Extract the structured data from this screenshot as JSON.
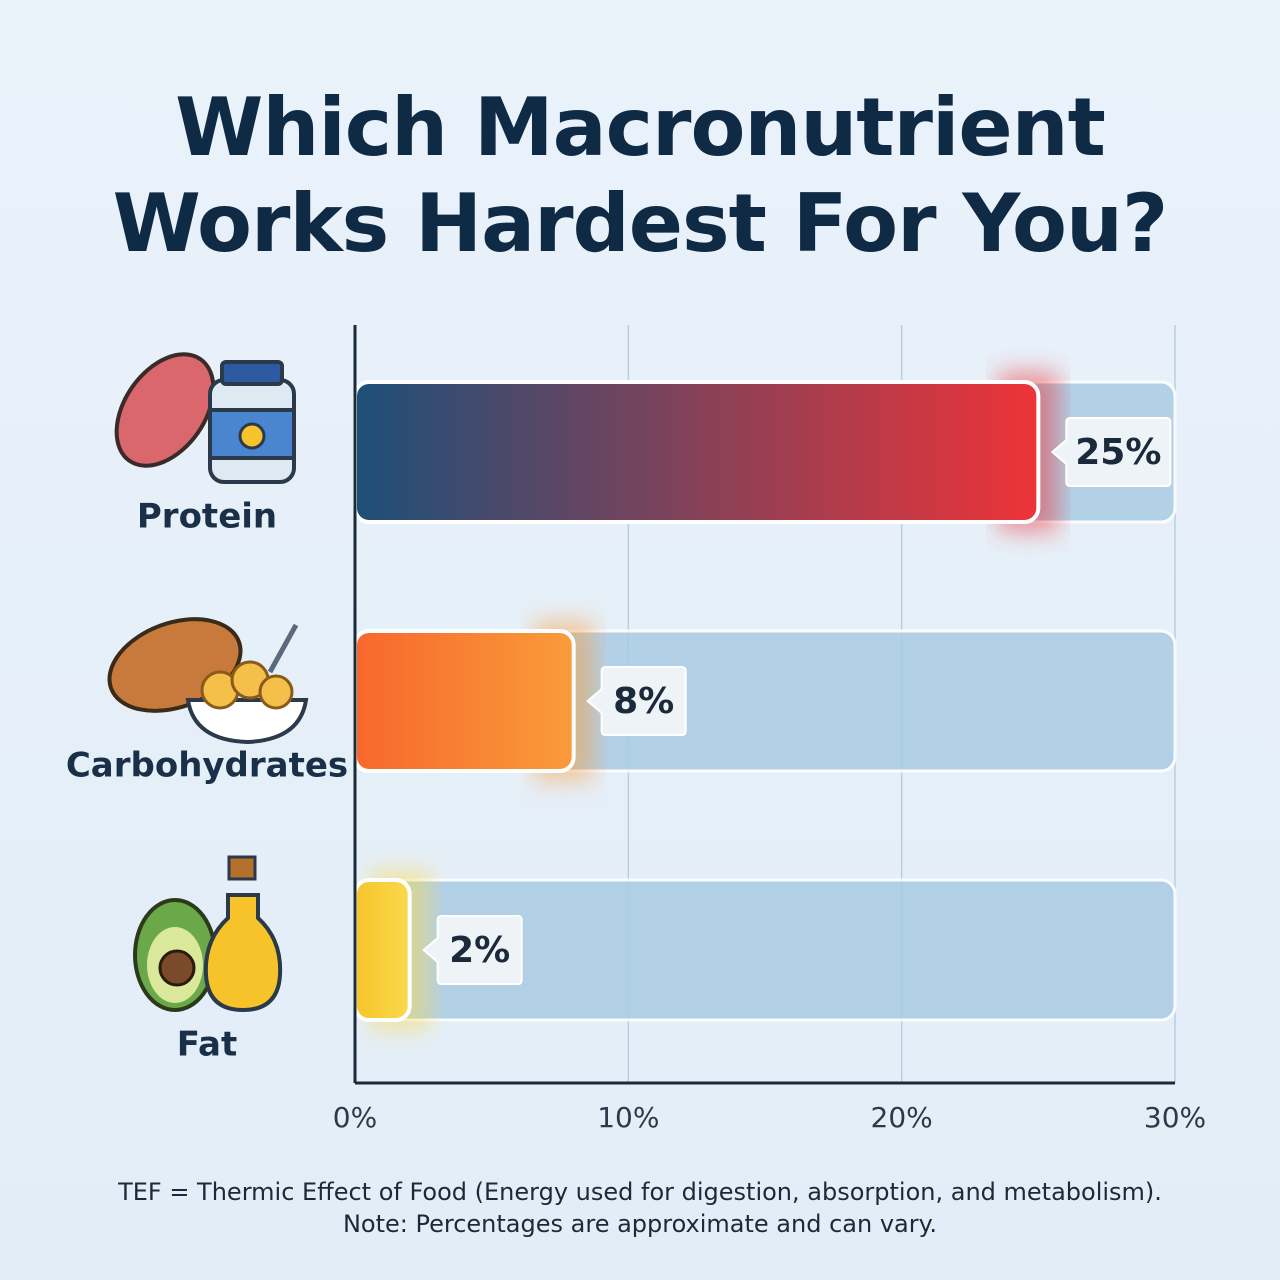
{
  "chart_data": {
    "type": "hbar",
    "title": "Which Macronutrient Works Hardest For You?",
    "categories": [
      "Protein",
      "Carbohydrates",
      "Fat"
    ],
    "values": [
      25,
      8,
      2
    ],
    "value_labels": [
      "25%",
      "8%",
      "2%"
    ],
    "colors": [
      [
        "#1d4f78",
        "#ee3338"
      ],
      [
        "#f8672c",
        "#f99c3a"
      ],
      [
        "#f6c42a",
        "#fbd94c"
      ]
    ],
    "track_color": "#a9cbe3",
    "xlim": [
      0,
      30
    ],
    "xticks": [
      {
        "value": 0,
        "label": "0%"
      },
      {
        "value": 10,
        "label": "10%"
      },
      {
        "value": 20,
        "label": "20%"
      },
      {
        "value": 30,
        "label": "30%"
      }
    ],
    "grid": true,
    "notes": [
      "TEF = Thermic Effect of Food (Energy used for digestion, absorption, and metabolism).",
      "Note: Percentages are approximate and can vary."
    ]
  }
}
